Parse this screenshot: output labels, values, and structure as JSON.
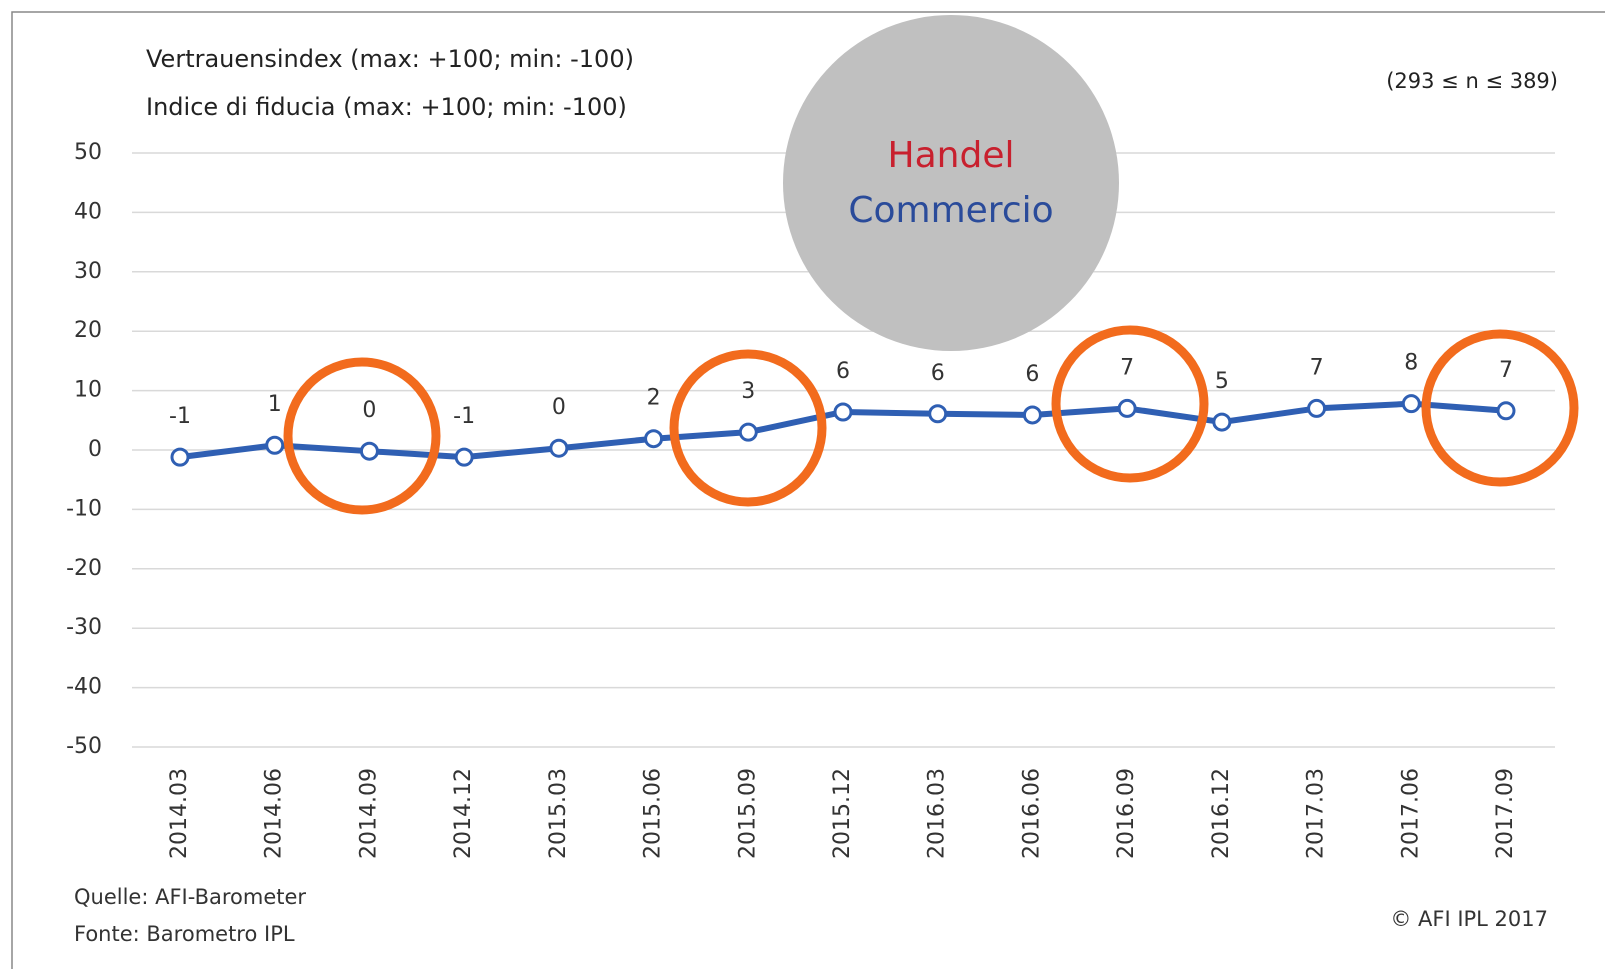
{
  "chart_data": {
    "type": "line",
    "title": "Vertrauensindex (max: +100; min: -100)",
    "subtitle": "Indice di fiducia (max: +100; min: -100)",
    "sample_note": "(293 ≤ n ≤ 389)",
    "badge": {
      "line1": "Handel",
      "line2": "Commercio"
    },
    "source": [
      "Quelle: AFI-Barometer",
      "Fonte: Barometro IPL"
    ],
    "copyright": "© AFI IPL 2017",
    "categories": [
      "2014.03",
      "2014.06",
      "2014.09",
      "2014.12",
      "2015.03",
      "2015.06",
      "2015.09",
      "2015.12",
      "2016.03",
      "2016.06",
      "2016.09",
      "2016.12",
      "2017.03",
      "2017.06",
      "2017.09"
    ],
    "values": [
      -1.2,
      0.8,
      -0.2,
      -1.2,
      0.3,
      1.9,
      3.0,
      6.4,
      6.1,
      5.9,
      7.0,
      4.7,
      7.0,
      7.8,
      6.6
    ],
    "value_labels": [
      "-1",
      "1",
      "0",
      "-1",
      "0",
      "2",
      "3",
      "6",
      "6",
      "6",
      "7",
      "5",
      "7",
      "8",
      "7"
    ],
    "color": "#2f5fb3",
    "ylim": [
      -50,
      50
    ],
    "yticks": [
      -50,
      -40,
      -30,
      -20,
      -10,
      0,
      10,
      20,
      30,
      40,
      50
    ],
    "grid": true
  }
}
